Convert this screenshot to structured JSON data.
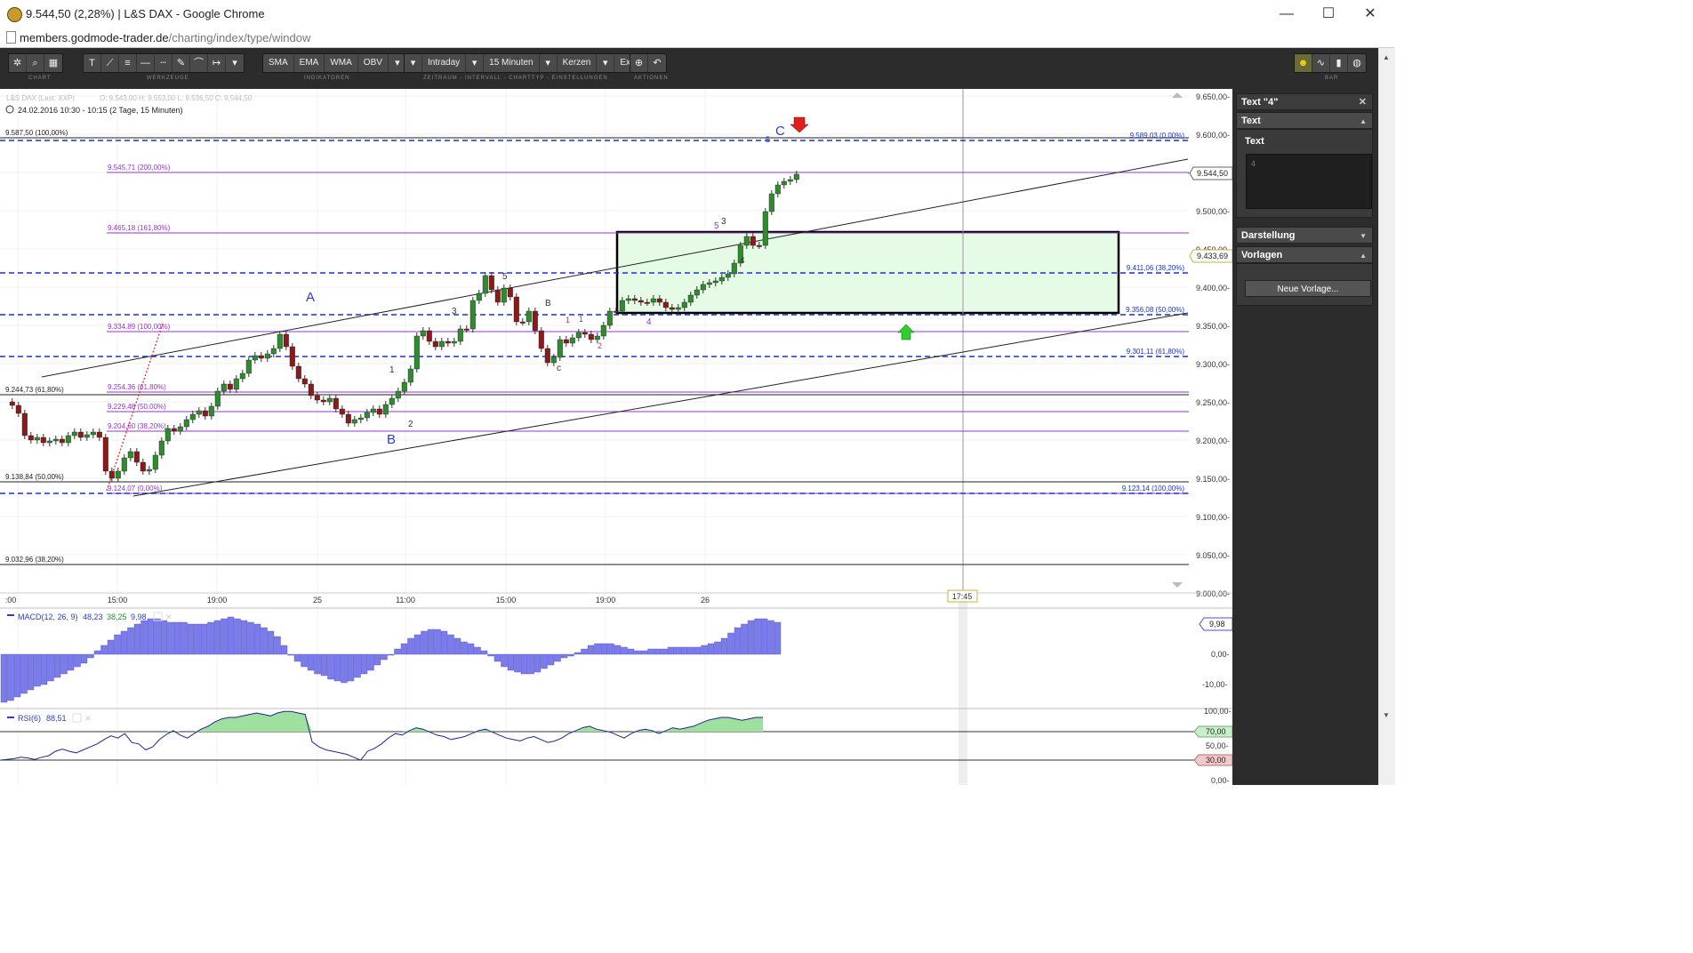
{
  "window": {
    "title": "9.544,50 (2,28%) | L&S DAX - Google Chrome",
    "minimize": "—",
    "maximize": "☐",
    "close": "✕"
  },
  "address": {
    "url_host": "members.godmode-trader.de",
    "url_path": "/charting/index/type/window"
  },
  "toolbar": {
    "chart_label": "CHART",
    "werkzeuge_label": "WERKZEUGE",
    "indikatoren_label": "INDIKATOREN",
    "zeitraum_label": "ZEITRAUM - INTERVALL - CHARTTYP - EINSTELLUNGEN",
    "aktionen_label": "AKTIONEN",
    "bar_label": "BAR",
    "indicators": [
      "SMA",
      "EMA",
      "WMA",
      "OBV"
    ],
    "zeitraum": "Intraday",
    "interval": "15 Minuten",
    "charttyp": "Kerzen",
    "extras": "Extras"
  },
  "chart": {
    "instrument": "L&S DAX (Last, XXP)",
    "ohlc": "O: 9.543,00   H: 9.553,00   L: 9.536,50   C: 9.544,50",
    "date_range": "24.02.2016 10:30 - 10:15 (2 Tage, 15 Minuten)",
    "price_labels": [
      "9.650,00-",
      "9.600,00-",
      "9.550,00-",
      "9.500,00-",
      "9.450,00-",
      "9.400,00-",
      "9.350,00-",
      "9.300,00-",
      "9.250,00-",
      "9.200,00-",
      "9.150,00-",
      "9.100,00-",
      "9.050,00-",
      "9.000,00-"
    ],
    "current_price": "9.544,50",
    "cursor_price": "9.433,69",
    "time_labels": [
      ":00",
      "15:00",
      "19:00",
      "25",
      "11:00",
      "15:00",
      "19:00",
      "26"
    ],
    "cursor_time": "17:45",
    "fib_left": [
      "9.587,50 (100,00%)",
      "9.244,73 (61,80%)",
      "9.138,84 (50,00%)",
      "9.032,96 (38,20%)"
    ],
    "fib_ext": [
      "9.545,71 (200,00%)",
      "9.465,18 (161,80%)",
      "9.334,89 (100,00%)",
      "9.254,36 (61,80%)",
      "9.229,48 (50,00%)",
      "9.204,60 (38,20%)",
      "9.124,07 (0,00%)"
    ],
    "fib_right": [
      "9.589,03 (0,00%)",
      "9.411,06 (38,20%)",
      "9.356,08 (50,00%)",
      "9.301,11 (61,80%)",
      "9.123,14 (100,00%)"
    ],
    "wave_labels": {
      "A": "A",
      "B": "B",
      "C": "C",
      "small_B": "B",
      "small_c": "c",
      "n1": "1",
      "n2": "2",
      "n3": "3",
      "n4": "4",
      "n5": "5"
    }
  },
  "macd": {
    "label": "MACD(12, 26, 9)",
    "v1": "48,23",
    "v2": "38,25",
    "v3": "9,98",
    "current": "9,98",
    "scale": [
      "0,00-",
      "-10,00-"
    ]
  },
  "rsi": {
    "label": "RSI(6)",
    "value": "88,51",
    "scale": [
      "100,00-",
      "70,00",
      "50,00-",
      "30,00",
      "0,00-"
    ]
  },
  "panel": {
    "header": "Text \"4\"",
    "section_text": "Text",
    "text_label": "Text",
    "text_value": "4",
    "section_darstellung": "Darstellung",
    "section_vorlagen": "Vorlagen",
    "new_template_button": "Neue Vorlage..."
  },
  "colors": {
    "fib_purple": "#9933cc",
    "fib_blue": "#1a33cc",
    "up": "#2e8b2e",
    "down": "#8b1a1a",
    "macd": "#7b7bea",
    "box_fill": "#e6fbe6"
  }
}
